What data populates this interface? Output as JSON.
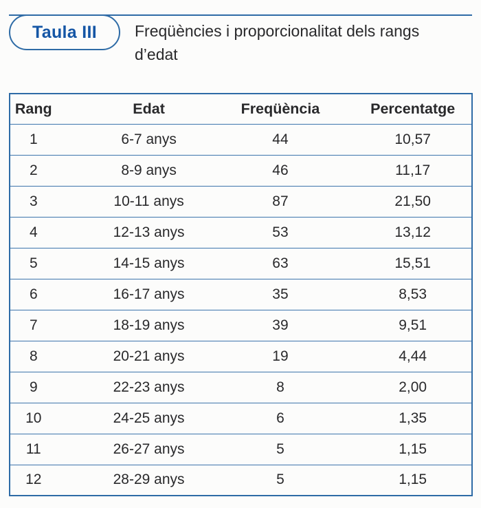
{
  "colors": {
    "accent_blue": "#1556a5",
    "border_blue": "#2e6ba6",
    "rule_blue": "#3c74ac",
    "text_dark": "#29292b",
    "background": "#fcfcfb"
  },
  "header": {
    "badge_label": "Taula III",
    "caption_line1": "Freqüències i proporcionalitat dels rangs",
    "caption_line2": "d’edat"
  },
  "table": {
    "columns": [
      "Rang",
      "Edat",
      "Freqüència",
      "Percentatge"
    ],
    "rows": [
      [
        "1",
        "6-7 anys",
        "44",
        "10,57"
      ],
      [
        "2",
        "8-9 anys",
        "46",
        "11,17"
      ],
      [
        "3",
        "10-11 anys",
        "87",
        "21,50"
      ],
      [
        "4",
        "12-13 anys",
        "53",
        "13,12"
      ],
      [
        "5",
        "14-15 anys",
        "63",
        "15,51"
      ],
      [
        "6",
        "16-17 anys",
        "35",
        "8,53"
      ],
      [
        "7",
        "18-19 anys",
        "39",
        "9,51"
      ],
      [
        "8",
        "20-21 anys",
        "19",
        "4,44"
      ],
      [
        "9",
        "22-23 anys",
        "8",
        "2,00"
      ],
      [
        "10",
        "24-25 anys",
        "6",
        "1,35"
      ],
      [
        "11",
        "26-27 anys",
        "5",
        "1,15"
      ],
      [
        "12",
        "28-29 anys",
        "5",
        "1,15"
      ]
    ]
  },
  "chart_data": {
    "type": "table",
    "title": "Taula III — Freqüències i proporcionalitat dels rangs d’edat",
    "columns": [
      "Rang",
      "Edat",
      "Freqüència",
      "Percentatge"
    ],
    "rows": [
      [
        1,
        "6-7 anys",
        44,
        10.57
      ],
      [
        2,
        "8-9 anys",
        46,
        11.17
      ],
      [
        3,
        "10-11 anys",
        87,
        21.5
      ],
      [
        4,
        "12-13 anys",
        53,
        13.12
      ],
      [
        5,
        "14-15 anys",
        63,
        15.51
      ],
      [
        6,
        "16-17 anys",
        35,
        8.53
      ],
      [
        7,
        "18-19 anys",
        39,
        9.51
      ],
      [
        8,
        "20-21 anys",
        19,
        4.44
      ],
      [
        9,
        "22-23 anys",
        8,
        2.0
      ],
      [
        10,
        "24-25 anys",
        6,
        1.35
      ],
      [
        11,
        "26-27 anys",
        5,
        1.15
      ],
      [
        12,
        "28-29 anys",
        5,
        1.15
      ]
    ],
    "decimal_separator": ","
  }
}
